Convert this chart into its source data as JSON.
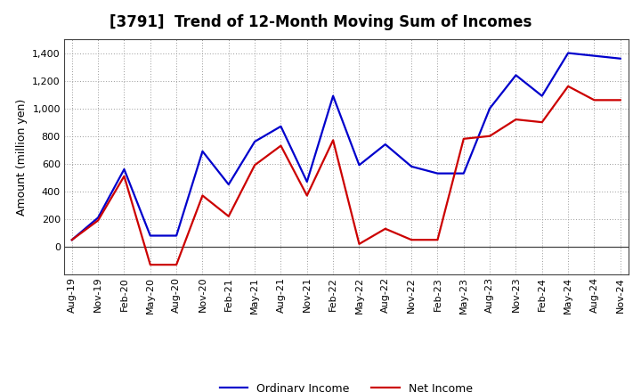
{
  "title": "[3791]  Trend of 12-Month Moving Sum of Incomes",
  "ylabel": "Amount (million yen)",
  "ylim": [
    -200,
    1500
  ],
  "yticks": [
    0,
    200,
    400,
    600,
    800,
    1000,
    1200,
    1400
  ],
  "plot_bg": "#ffffff",
  "fig_bg": "#ffffff",
  "grid_color": "#999999",
  "labels": [
    "Aug-19",
    "Nov-19",
    "Feb-20",
    "May-20",
    "Aug-20",
    "Nov-20",
    "Feb-21",
    "May-21",
    "Aug-21",
    "Nov-21",
    "Feb-22",
    "May-22",
    "Aug-22",
    "Nov-22",
    "Feb-23",
    "May-23",
    "Aug-23",
    "Nov-23",
    "Feb-24",
    "May-24",
    "Aug-24",
    "Nov-24"
  ],
  "ordinary_income": [
    50,
    210,
    560,
    80,
    80,
    690,
    450,
    760,
    870,
    470,
    1090,
    590,
    740,
    580,
    530,
    530,
    1000,
    1240,
    1090,
    1400,
    1380,
    1360
  ],
  "net_income": [
    50,
    190,
    510,
    -130,
    -130,
    370,
    220,
    590,
    730,
    370,
    770,
    20,
    130,
    50,
    50,
    780,
    800,
    920,
    900,
    1160,
    1060,
    1060
  ],
  "ordinary_color": "#0000cc",
  "net_color": "#cc0000",
  "line_width": 1.6,
  "legend_ordinary": "Ordinary Income",
  "legend_net": "Net Income",
  "title_fontsize": 12,
  "ylabel_fontsize": 9,
  "tick_fontsize": 8
}
